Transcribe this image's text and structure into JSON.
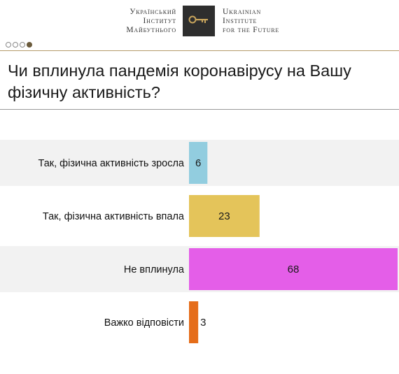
{
  "header": {
    "org_ua_lines": [
      "Український",
      "Інститут",
      "Майбутнього"
    ],
    "org_en_lines": [
      "Ukrainian",
      "Institute",
      "for the Future"
    ],
    "logo_icon": "key-icon",
    "pagination": {
      "count": 4,
      "active_index": 3
    }
  },
  "question": "Чи вплинула пандемія коронавірусу на Вашу фізичну активність?",
  "chart_data": {
    "type": "bar",
    "orientation": "horizontal",
    "categories": [
      "Так, фізична активність зросла",
      "Так, фізична активність впала",
      "Не вплинула",
      "Важко відповісти"
    ],
    "values": [
      6,
      23,
      68,
      3
    ],
    "colors": [
      "#92cddf",
      "#e4c45a",
      "#e45ee8",
      "#e56d1a"
    ],
    "row_background": "#f2f2f2",
    "xlim": [
      0,
      68
    ],
    "grid": false,
    "legend": "none"
  }
}
